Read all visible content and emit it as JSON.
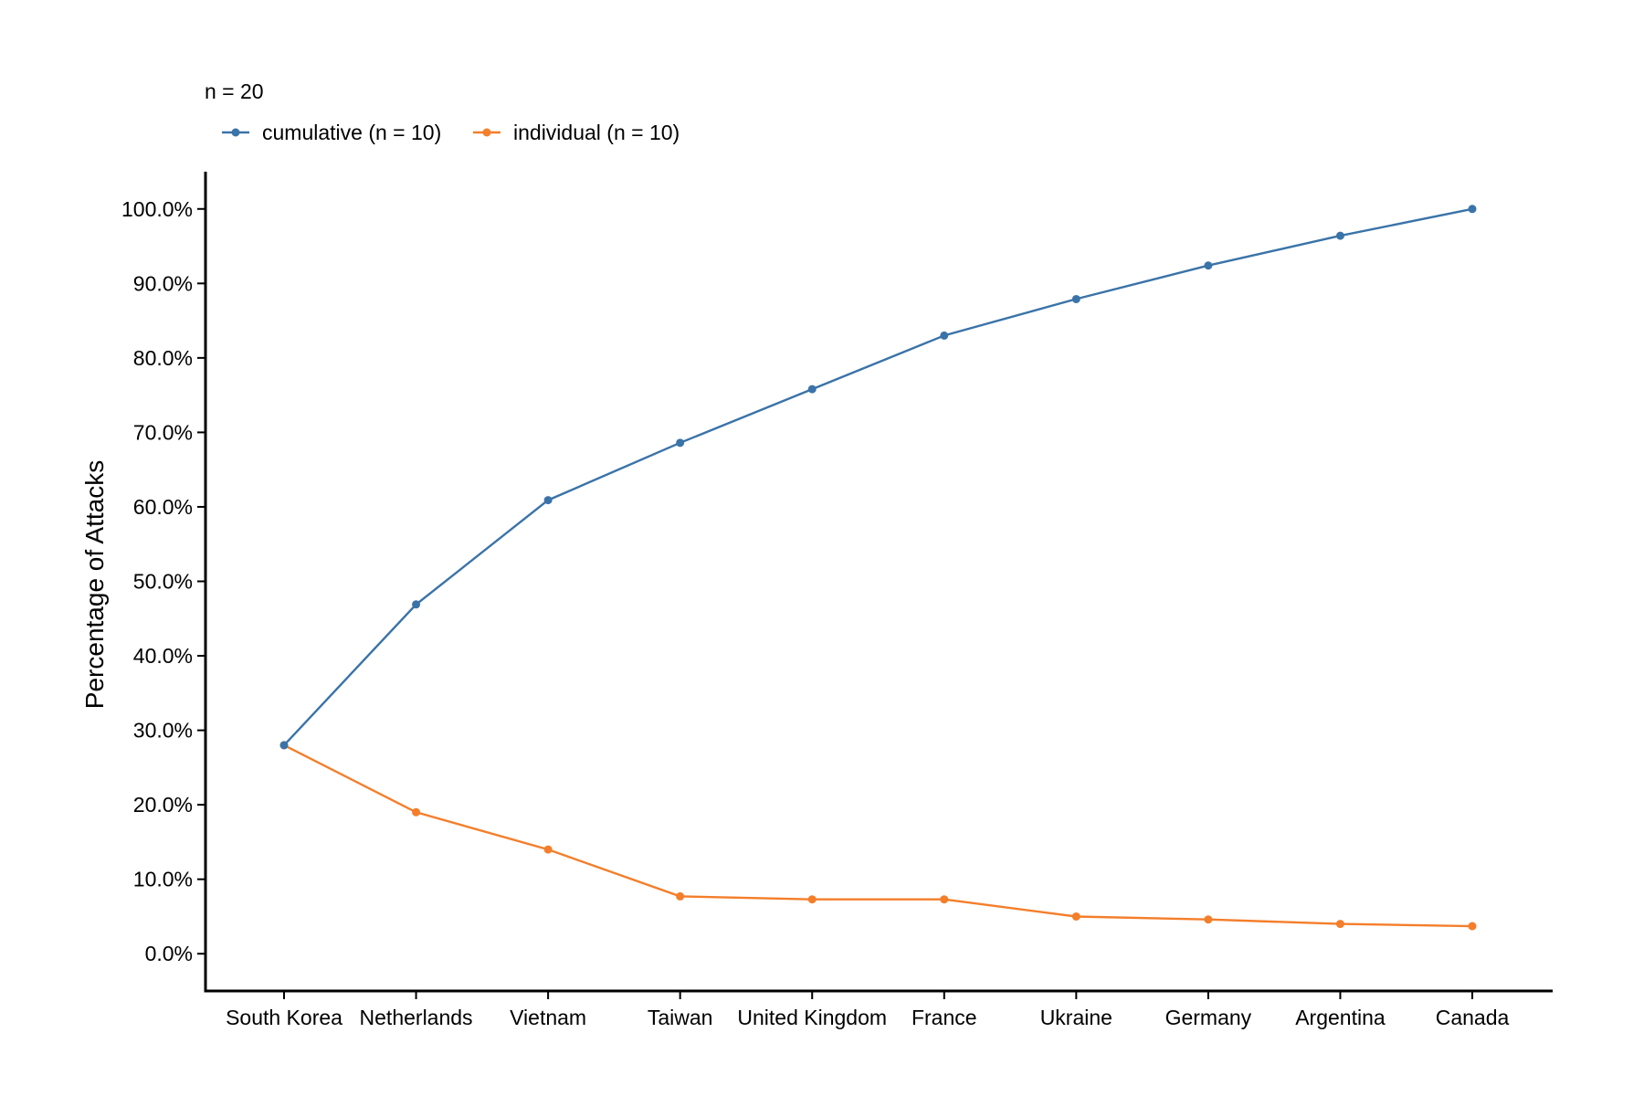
{
  "chart_data": {
    "type": "line",
    "legend": {
      "title": "n = 20",
      "placement": "top-left"
    },
    "ylabel": "Percentage of Attacks",
    "xlabel": "",
    "categories": [
      "South Korea",
      "Netherlands",
      "Vietnam",
      "Taiwan",
      "United Kingdom",
      "France",
      "Ukraine",
      "Germany",
      "Argentina",
      "Canada"
    ],
    "ylim": [
      -5,
      105
    ],
    "y_ticks": [
      0,
      10,
      20,
      30,
      40,
      50,
      60,
      70,
      80,
      90,
      100
    ],
    "y_tick_labels": [
      "0.0%",
      "10.0%",
      "20.0%",
      "30.0%",
      "40.0%",
      "50.0%",
      "60.0%",
      "70.0%",
      "80.0%",
      "90.0%",
      "100.0%"
    ],
    "grid": false,
    "series": [
      {
        "name": "cumulative (n = 10)",
        "color": "#3a73a8",
        "values": [
          28.0,
          46.9,
          60.9,
          68.6,
          75.8,
          83.0,
          87.9,
          92.4,
          96.4,
          100.0
        ]
      },
      {
        "name": "individual (n = 10)",
        "color": "#f47e2a",
        "values": [
          28.0,
          19.0,
          14.0,
          7.7,
          7.3,
          7.3,
          5.0,
          4.6,
          4.0,
          3.7
        ]
      }
    ]
  }
}
